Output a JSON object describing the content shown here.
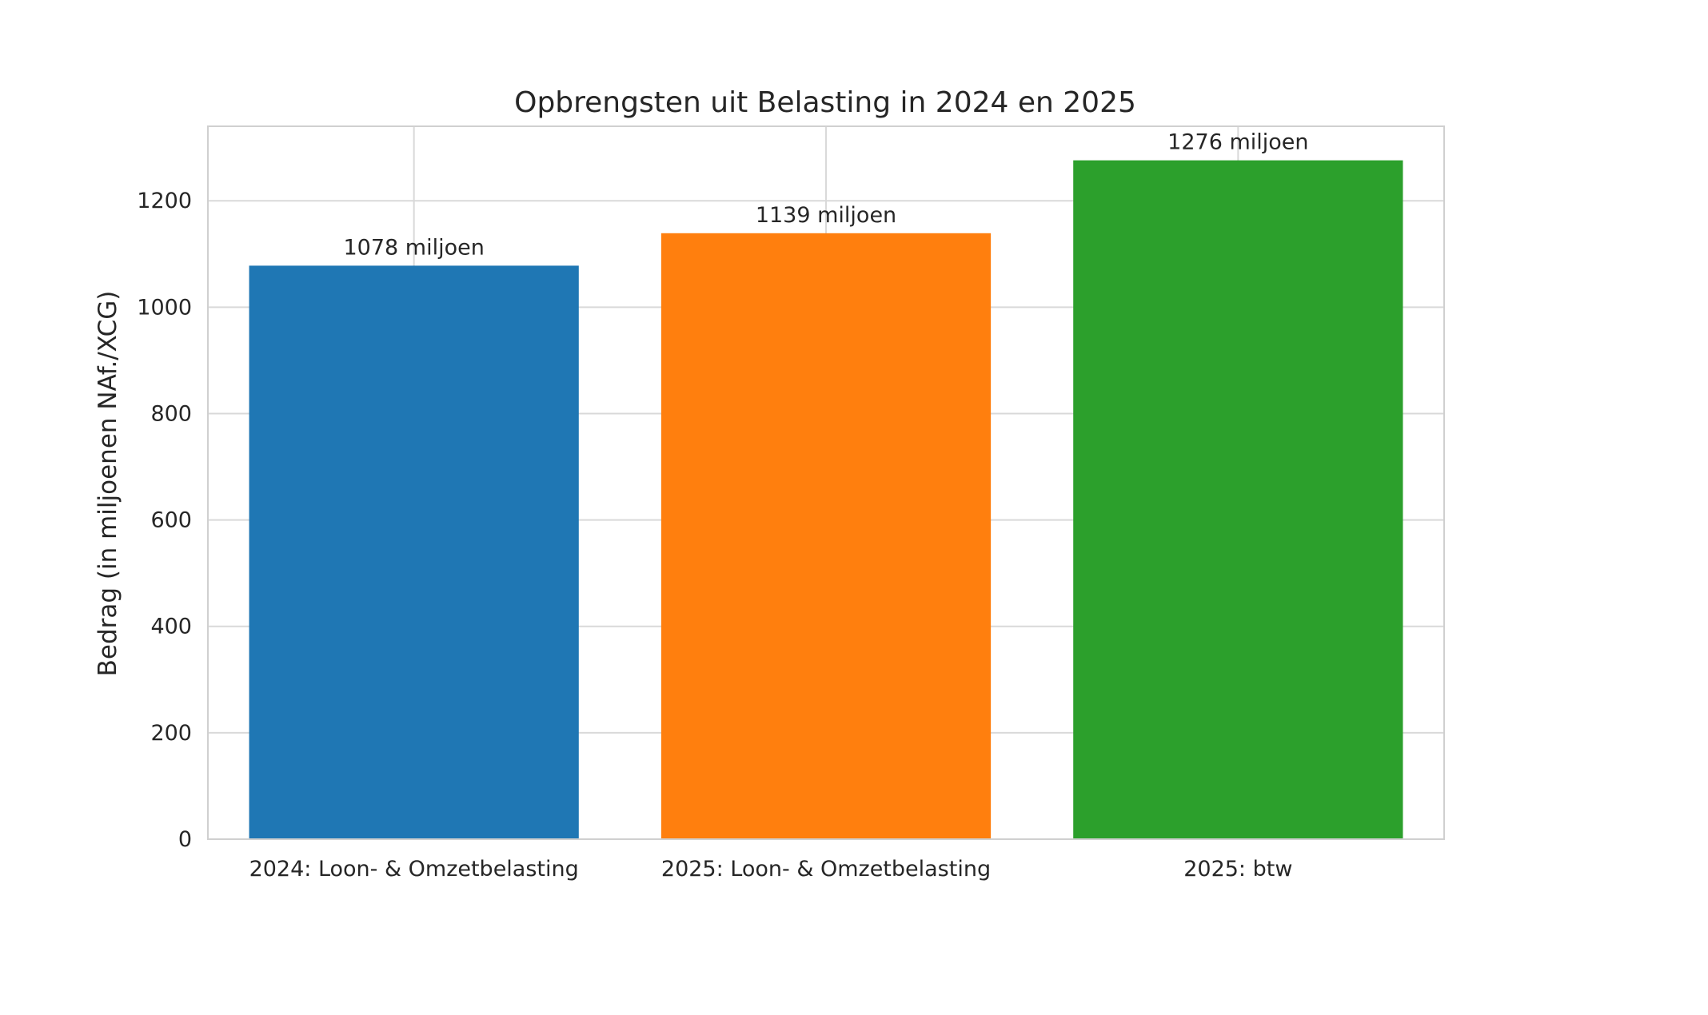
{
  "chart_data": {
    "type": "bar",
    "title": "Opbrengsten uit Belasting in 2024 en 2025",
    "xlabel": "",
    "ylabel": "Bedrag (in miljoenen NAf./XCG)",
    "categories": [
      "2024: Loon- & Omzetbelasting",
      "2025: Loon- & Omzetbelasting",
      "2025: btw"
    ],
    "values": [
      1078,
      1139,
      1276
    ],
    "value_labels": [
      "1078 miljoen",
      "1139 miljoen",
      "1276 miljoen"
    ],
    "colors": [
      "#1f77b4",
      "#ff7f0e",
      "#2ca02c"
    ],
    "ylim": [
      0,
      1340
    ],
    "yticks": [
      0,
      200,
      400,
      600,
      800,
      1000,
      1200
    ],
    "grid": true,
    "legend": "none"
  }
}
